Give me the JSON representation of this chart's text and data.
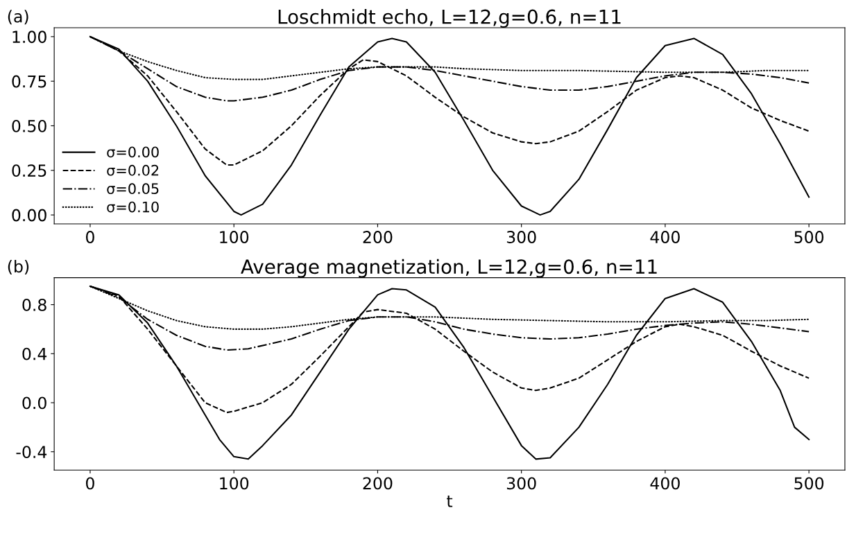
{
  "chart_data": [
    {
      "type": "line",
      "title": "Loschmidt echo, L=12,g=0.6, n=11",
      "annotations": [
        "(a)"
      ],
      "xlim": [
        -25,
        525
      ],
      "xticks": [
        0,
        100,
        200,
        300,
        400,
        500
      ],
      "ylim": [
        -0.05,
        1.05
      ],
      "yticks": [
        {
          "value": 0,
          "label": "0.00"
        },
        {
          "value": 0.25,
          "label": "0.25"
        },
        {
          "value": 0.5,
          "label": "0.50"
        },
        {
          "value": 0.75,
          "label": "0.75"
        },
        {
          "value": 1,
          "label": "1.00"
        }
      ],
      "grid": false,
      "legend": "bottom left",
      "series": [
        {
          "name": "σ=0.00",
          "color": "#000000",
          "line_style": "solid",
          "x": [
            0,
            20,
            40,
            60,
            80,
            100,
            105,
            120,
            140,
            160,
            180,
            200,
            210,
            220,
            240,
            260,
            280,
            300,
            313,
            320,
            340,
            360,
            380,
            400,
            420,
            440,
            460,
            480,
            500
          ],
          "values": [
            1.0,
            0.93,
            0.75,
            0.5,
            0.22,
            0.02,
            0.0,
            0.06,
            0.28,
            0.56,
            0.83,
            0.97,
            0.99,
            0.97,
            0.8,
            0.53,
            0.25,
            0.05,
            0.0,
            0.02,
            0.2,
            0.48,
            0.77,
            0.95,
            0.99,
            0.9,
            0.68,
            0.4,
            0.1
          ]
        },
        {
          "name": "σ=0.02",
          "color": "#000000",
          "line_style": "dashed",
          "x": [
            0,
            20,
            40,
            60,
            80,
            95,
            100,
            120,
            140,
            160,
            180,
            190,
            200,
            220,
            240,
            260,
            280,
            300,
            310,
            320,
            340,
            360,
            380,
            400,
            410,
            420,
            440,
            460,
            480,
            500
          ],
          "values": [
            1.0,
            0.92,
            0.78,
            0.58,
            0.37,
            0.28,
            0.28,
            0.36,
            0.5,
            0.67,
            0.82,
            0.87,
            0.86,
            0.78,
            0.66,
            0.55,
            0.46,
            0.41,
            0.4,
            0.41,
            0.47,
            0.58,
            0.7,
            0.77,
            0.78,
            0.77,
            0.7,
            0.6,
            0.53,
            0.47
          ]
        },
        {
          "name": "σ=0.05",
          "color": "#000000",
          "line_style": "dashdot",
          "x": [
            0,
            20,
            40,
            60,
            80,
            95,
            100,
            120,
            140,
            160,
            180,
            200,
            220,
            240,
            260,
            280,
            300,
            320,
            340,
            360,
            380,
            400,
            420,
            440,
            460,
            480,
            500
          ],
          "values": [
            1.0,
            0.92,
            0.82,
            0.72,
            0.66,
            0.64,
            0.64,
            0.66,
            0.7,
            0.76,
            0.81,
            0.83,
            0.83,
            0.81,
            0.78,
            0.75,
            0.72,
            0.7,
            0.7,
            0.72,
            0.75,
            0.78,
            0.8,
            0.8,
            0.79,
            0.77,
            0.74
          ]
        },
        {
          "name": "σ=0.10",
          "color": "#000000",
          "line_style": "dotted",
          "x": [
            0,
            20,
            40,
            60,
            80,
            100,
            120,
            140,
            160,
            180,
            200,
            220,
            240,
            260,
            300,
            340,
            400,
            440,
            470,
            500
          ],
          "values": [
            1.0,
            0.92,
            0.86,
            0.81,
            0.77,
            0.76,
            0.76,
            0.78,
            0.8,
            0.82,
            0.83,
            0.83,
            0.83,
            0.82,
            0.81,
            0.81,
            0.8,
            0.8,
            0.81,
            0.81
          ]
        }
      ]
    },
    {
      "type": "line",
      "title": "Average magnetization, L=12,g=0.6, n=11",
      "xlabel": "t",
      "annotations": [
        "(b)"
      ],
      "xlim": [
        -25,
        525
      ],
      "xticks": [
        0,
        100,
        200,
        300,
        400,
        500
      ],
      "ylim": [
        -0.55,
        1.02
      ],
      "yticks": [
        {
          "value": -0.4,
          "label": "-0.4"
        },
        {
          "value": 0,
          "label": "0.0"
        },
        {
          "value": 0.4,
          "label": "0.4"
        },
        {
          "value": 0.8,
          "label": "0.8"
        }
      ],
      "grid": false,
      "series": [
        {
          "color": "#000000",
          "line_style": "solid",
          "x": [
            0,
            20,
            40,
            60,
            80,
            90,
            100,
            110,
            120,
            140,
            160,
            180,
            200,
            210,
            220,
            240,
            260,
            280,
            300,
            310,
            320,
            340,
            360,
            380,
            400,
            420,
            440,
            460,
            480,
            490,
            500
          ],
          "values": [
            0.95,
            0.88,
            0.65,
            0.3,
            -0.1,
            -0.3,
            -0.44,
            -0.46,
            -0.35,
            -0.1,
            0.25,
            0.6,
            0.88,
            0.93,
            0.92,
            0.78,
            0.45,
            0.05,
            -0.35,
            -0.46,
            -0.45,
            -0.2,
            0.15,
            0.55,
            0.85,
            0.93,
            0.82,
            0.5,
            0.1,
            -0.2,
            -0.3
          ]
        },
        {
          "color": "#000000",
          "line_style": "dashed",
          "x": [
            0,
            20,
            40,
            60,
            80,
            95,
            100,
            120,
            140,
            160,
            180,
            190,
            200,
            220,
            240,
            260,
            280,
            300,
            310,
            320,
            340,
            360,
            380,
            400,
            410,
            420,
            440,
            460,
            480,
            500
          ],
          "values": [
            0.95,
            0.87,
            0.6,
            0.3,
            0.0,
            -0.08,
            -0.07,
            0.0,
            0.15,
            0.38,
            0.62,
            0.74,
            0.76,
            0.73,
            0.6,
            0.42,
            0.25,
            0.12,
            0.1,
            0.12,
            0.2,
            0.35,
            0.5,
            0.62,
            0.64,
            0.62,
            0.55,
            0.42,
            0.3,
            0.2
          ]
        },
        {
          "color": "#000000",
          "line_style": "dashdot",
          "x": [
            0,
            20,
            40,
            60,
            80,
            95,
            110,
            140,
            160,
            180,
            200,
            220,
            240,
            260,
            280,
            300,
            320,
            340,
            360,
            380,
            400,
            420,
            440,
            460,
            480,
            500
          ],
          "values": [
            0.95,
            0.86,
            0.68,
            0.55,
            0.46,
            0.43,
            0.44,
            0.52,
            0.6,
            0.67,
            0.7,
            0.7,
            0.66,
            0.6,
            0.56,
            0.53,
            0.52,
            0.53,
            0.56,
            0.6,
            0.63,
            0.65,
            0.66,
            0.64,
            0.61,
            0.58
          ]
        },
        {
          "color": "#000000",
          "line_style": "dotted",
          "x": [
            0,
            20,
            40,
            60,
            80,
            100,
            120,
            140,
            160,
            180,
            200,
            240,
            280,
            320,
            360,
            400,
            440,
            470,
            500
          ],
          "values": [
            0.95,
            0.85,
            0.75,
            0.67,
            0.62,
            0.6,
            0.6,
            0.62,
            0.65,
            0.68,
            0.7,
            0.7,
            0.68,
            0.67,
            0.66,
            0.66,
            0.67,
            0.67,
            0.68
          ]
        }
      ]
    }
  ]
}
